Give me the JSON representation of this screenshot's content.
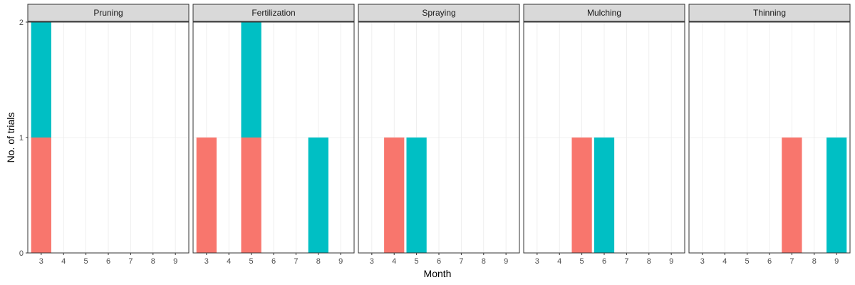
{
  "chart_data": {
    "type": "bar",
    "stacked": true,
    "facet_by": "activity",
    "xlabel": "Month",
    "ylabel": "No. of trials",
    "x": [
      3,
      4,
      5,
      6,
      7,
      8,
      9
    ],
    "ylim": [
      0,
      2
    ],
    "yticks": [
      0,
      1,
      2
    ],
    "grid": true,
    "colors": [
      "#F8766D",
      "#00BFC4"
    ],
    "panels": [
      {
        "title": "Pruning",
        "series": [
          {
            "values": [
              1,
              0,
              0,
              0,
              0,
              0,
              0
            ]
          },
          {
            "values": [
              1,
              0,
              0,
              0,
              0,
              0,
              0
            ]
          }
        ]
      },
      {
        "title": "Fertilization",
        "series": [
          {
            "values": [
              1,
              0,
              1,
              0,
              0,
              0,
              0
            ]
          },
          {
            "values": [
              0,
              0,
              1,
              0,
              0,
              1,
              0
            ]
          }
        ]
      },
      {
        "title": "Spraying",
        "series": [
          {
            "values": [
              0,
              1,
              0,
              0,
              0,
              0,
              0
            ]
          },
          {
            "values": [
              0,
              0,
              1,
              0,
              0,
              0,
              0
            ]
          }
        ]
      },
      {
        "title": "Mulching",
        "series": [
          {
            "values": [
              0,
              0,
              1,
              0,
              0,
              0,
              0
            ]
          },
          {
            "values": [
              0,
              0,
              0,
              1,
              0,
              0,
              0
            ]
          }
        ]
      },
      {
        "title": "Thinning",
        "series": [
          {
            "values": [
              0,
              0,
              0,
              0,
              1,
              0,
              0
            ]
          },
          {
            "values": [
              0,
              0,
              0,
              0,
              0,
              0,
              1
            ]
          }
        ]
      }
    ]
  }
}
